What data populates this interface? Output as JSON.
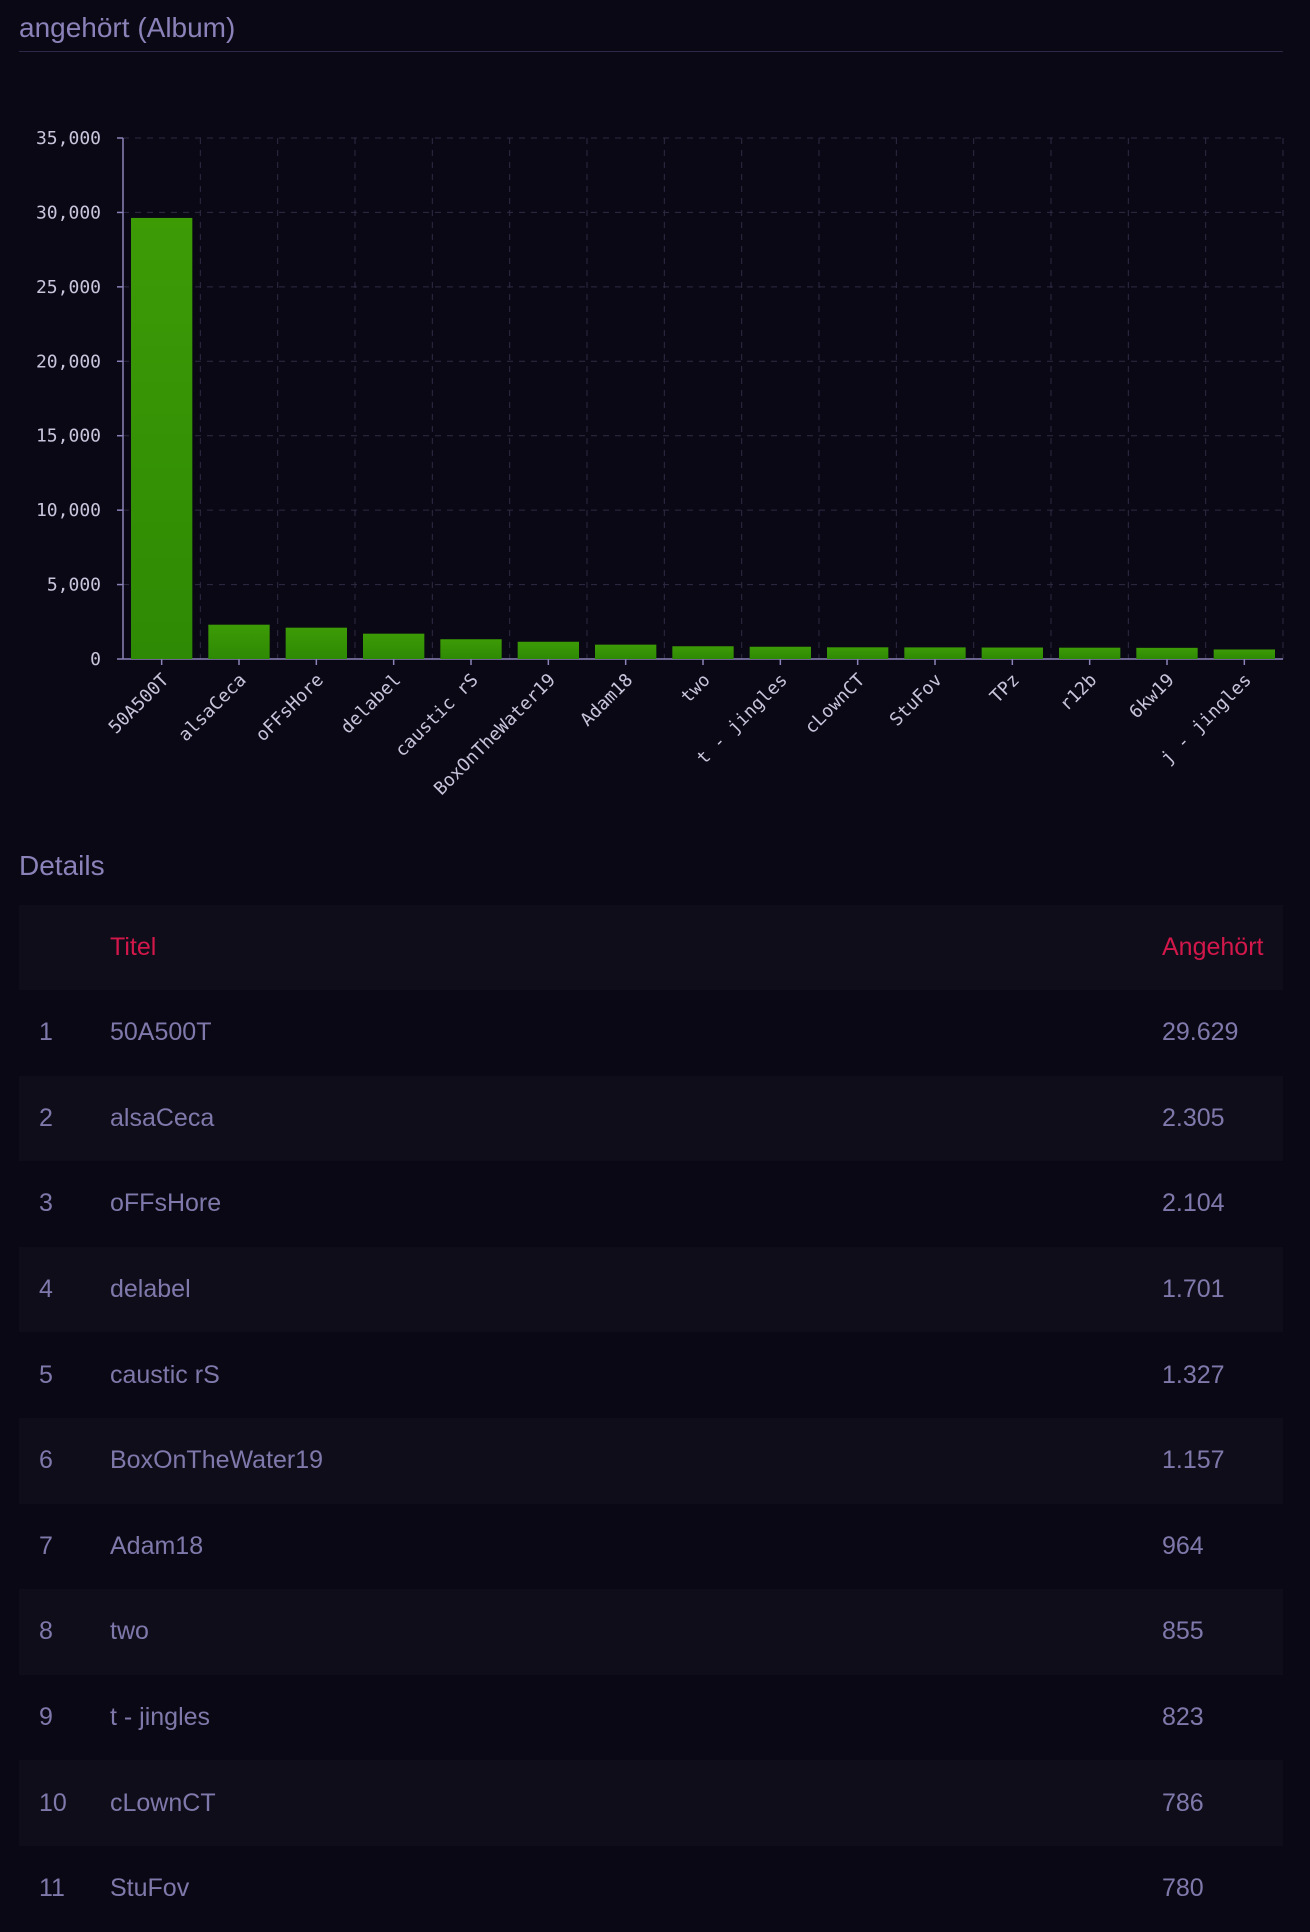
{
  "section_title": "angehört (Album)",
  "details_title": "Details",
  "table": {
    "headers": {
      "rank": "",
      "title": "Titel",
      "count": "Angehört"
    },
    "rows": [
      {
        "rank": "1",
        "title": "50A500T",
        "count": "29.629"
      },
      {
        "rank": "2",
        "title": "alsaCeca",
        "count": "2.305"
      },
      {
        "rank": "3",
        "title": "oFFsHore",
        "count": "2.104"
      },
      {
        "rank": "4",
        "title": "delabel",
        "count": "1.701"
      },
      {
        "rank": "5",
        "title": "caustic rS",
        "count": "1.327"
      },
      {
        "rank": "6",
        "title": "BoxOnTheWater19",
        "count": "1.157"
      },
      {
        "rank": "7",
        "title": "Adam18",
        "count": "964"
      },
      {
        "rank": "8",
        "title": "two",
        "count": "855"
      },
      {
        "rank": "9",
        "title": "t - jingles",
        "count": "823"
      },
      {
        "rank": "10",
        "title": "cLownCT",
        "count": "786"
      },
      {
        "rank": "11",
        "title": "StuFov",
        "count": "780"
      }
    ]
  },
  "colors": {
    "background": "#0a0814",
    "text": "#8a82b8",
    "accent": "#d2174a",
    "bar_top": "#3d9b06",
    "bar_bottom": "#2e8a04"
  },
  "chart_data": {
    "type": "bar",
    "categories": [
      "50A500T",
      "alsaCeca",
      "oFFsHore",
      "delabel",
      "caustic rS",
      "BoxOnTheWater19",
      "Adam18",
      "two",
      "t - jingles",
      "cLownCT",
      "StuFov",
      "TPz",
      "r12b",
      "6kw19",
      "j - jingles"
    ],
    "values": [
      29629,
      2305,
      2104,
      1701,
      1327,
      1157,
      964,
      855,
      823,
      786,
      780,
      770,
      760,
      750,
      640
    ],
    "yticks": [
      "0",
      "5,000",
      "10,000",
      "15,000",
      "20,000",
      "25,000",
      "30,000",
      "35,000"
    ],
    "ylim": [
      0,
      35000
    ],
    "grid": true,
    "title": "",
    "xlabel": "",
    "ylabel": ""
  }
}
